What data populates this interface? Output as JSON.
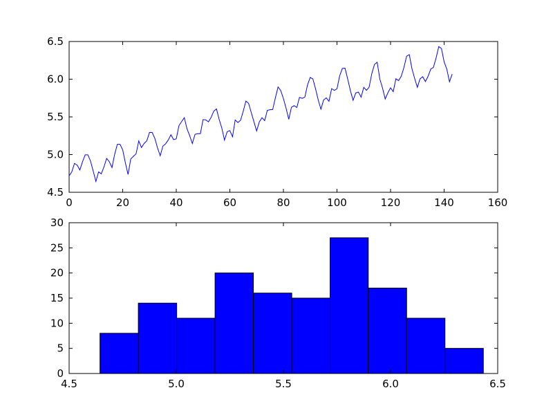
{
  "chart_data": [
    {
      "type": "line",
      "title": "",
      "xlabel": "",
      "ylabel": "",
      "xlim": [
        0,
        160
      ],
      "ylim": [
        4.5,
        6.5
      ],
      "xticks": [
        0,
        20,
        40,
        60,
        80,
        100,
        120,
        140,
        160
      ],
      "xtick_labels": [
        "0",
        "20",
        "40",
        "60",
        "80",
        "100",
        "120",
        "140",
        "160"
      ],
      "yticks": [
        4.5,
        5.0,
        5.5,
        6.0,
        6.5
      ],
      "ytick_labels": [
        "4.5",
        "5.0",
        "5.5",
        "6.0",
        "6.5"
      ],
      "grid": false,
      "line_color": "#0000ff",
      "series": [
        {
          "x": [
            0,
            1,
            2,
            3,
            4,
            5,
            6,
            7,
            8,
            9,
            10,
            11,
            12,
            13,
            14,
            15,
            16,
            17,
            18,
            19,
            20,
            21,
            22,
            23,
            24,
            25,
            26,
            27,
            28,
            29,
            30,
            31,
            32,
            33,
            34,
            35,
            36,
            37,
            38,
            39,
            40,
            41,
            42,
            43,
            44,
            45,
            46,
            47,
            48,
            49,
            50,
            51,
            52,
            53,
            54,
            55,
            56,
            57,
            58,
            59,
            60,
            61,
            62,
            63,
            64,
            65,
            66,
            67,
            68,
            69,
            70,
            71,
            72,
            73,
            74,
            75,
            76,
            77,
            78,
            79,
            80,
            81,
            82,
            83,
            84,
            85,
            86,
            87,
            88,
            89,
            90,
            91,
            92,
            93,
            94,
            95,
            96,
            97,
            98,
            99,
            100,
            101,
            102,
            103,
            104,
            105,
            106,
            107,
            108,
            109,
            110,
            111,
            112,
            113,
            114,
            115,
            116,
            117,
            118,
            119,
            120,
            121,
            122,
            123,
            124,
            125,
            126,
            127,
            128,
            129,
            130,
            131,
            132,
            133,
            134,
            135,
            136,
            137,
            138,
            139,
            140,
            141,
            142,
            143
          ],
          "y": [
            4.718,
            4.771,
            4.883,
            4.86,
            4.796,
            4.905,
            4.997,
            4.997,
            4.913,
            4.779,
            4.644,
            4.771,
            4.745,
            4.836,
            4.949,
            4.905,
            4.828,
            5.004,
            5.136,
            5.136,
            5.063,
            4.89,
            4.736,
            4.942,
            4.977,
            5.011,
            5.182,
            5.094,
            5.148,
            5.182,
            5.293,
            5.293,
            5.215,
            5.088,
            4.984,
            5.112,
            5.142,
            5.193,
            5.263,
            5.198,
            5.209,
            5.384,
            5.438,
            5.489,
            5.342,
            5.252,
            5.147,
            5.268,
            5.278,
            5.278,
            5.464,
            5.46,
            5.434,
            5.493,
            5.576,
            5.606,
            5.468,
            5.352,
            5.193,
            5.303,
            5.318,
            5.236,
            5.46,
            5.425,
            5.455,
            5.576,
            5.71,
            5.68,
            5.557,
            5.434,
            5.313,
            5.434,
            5.489,
            5.451,
            5.587,
            5.595,
            5.598,
            5.753,
            5.897,
            5.849,
            5.743,
            5.613,
            5.468,
            5.628,
            5.649,
            5.624,
            5.759,
            5.746,
            5.762,
            5.924,
            6.023,
            6.004,
            5.872,
            5.724,
            5.602,
            5.724,
            5.753,
            5.707,
            5.875,
            5.852,
            5.872,
            6.045,
            6.142,
            6.146,
            6.001,
            5.849,
            5.72,
            5.817,
            5.829,
            5.762,
            5.892,
            5.852,
            5.894,
            6.075,
            6.196,
            6.225,
            6.001,
            5.883,
            5.737,
            5.82,
            5.886,
            5.835,
            6.006,
            5.981,
            6.04,
            6.157,
            6.306,
            6.326,
            6.138,
            6.009,
            5.892,
            6.004,
            6.033,
            5.969,
            6.038,
            6.133,
            6.157,
            6.282,
            6.433,
            6.407,
            6.23,
            6.133,
            5.966,
            6.068
          ]
        }
      ]
    },
    {
      "type": "bar",
      "subtype": "histogram",
      "title": "",
      "xlabel": "",
      "ylabel": "",
      "xlim": [
        4.5,
        6.5
      ],
      "ylim": [
        0,
        30
      ],
      "xticks": [
        4.5,
        5.0,
        5.5,
        6.0,
        6.5
      ],
      "xtick_labels": [
        "4.5",
        "5.0",
        "5.5",
        "6.0",
        "6.5"
      ],
      "yticks": [
        0,
        5,
        10,
        15,
        20,
        25,
        30
      ],
      "ytick_labels": [
        "0",
        "5",
        "10",
        "15",
        "20",
        "25",
        "30"
      ],
      "grid": false,
      "bar_color": "#0000ff",
      "bin_edges": [
        4.644,
        4.823,
        5.002,
        5.181,
        5.36,
        5.539,
        5.718,
        5.896,
        6.075,
        6.254,
        6.433
      ],
      "values": [
        8,
        14,
        11,
        20,
        16,
        15,
        27,
        17,
        11,
        5
      ]
    }
  ]
}
